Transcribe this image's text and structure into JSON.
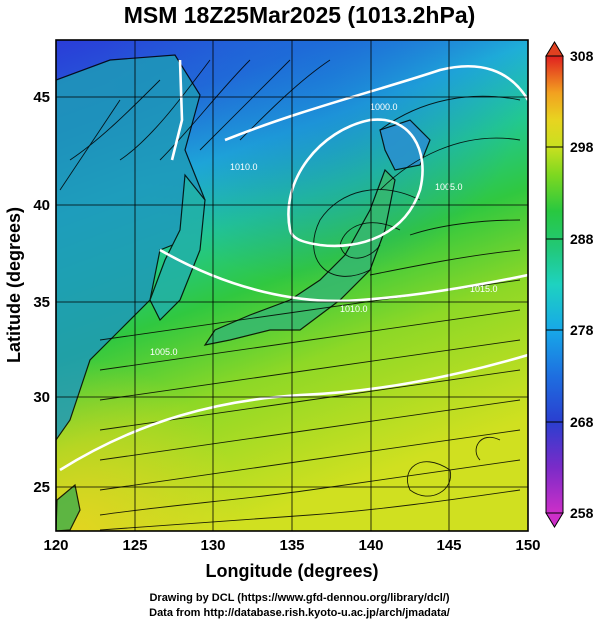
{
  "title": "MSM 18Z25Mar2025 (1013.2hPa)",
  "xlabel": "Longitude (degrees)",
  "ylabel": "Latitude  (degrees)",
  "x_ticks": [
    "120",
    "125",
    "130",
    "135",
    "140",
    "145",
    "150"
  ],
  "y_ticks": [
    "25",
    "30",
    "35",
    "40",
    "45"
  ],
  "colorbar_ticks": [
    "258",
    "268",
    "278",
    "288",
    "298",
    "308"
  ],
  "credits": {
    "line1": "Drawing by DCL (https://www.gfd-dennou.org/library/dcl/)",
    "line2": "Data from http://database.rish.kyoto-u.ac.jp/arch/jmadata/"
  },
  "isobar_labels": [
    "1005.0",
    "1010.0",
    "1015.0",
    "1010.0",
    "1000.0",
    "1005.0"
  ],
  "chart_data": {
    "type": "heatmap",
    "title": "MSM 18Z25Mar2025 (1013.2hPa)",
    "xlabel": "Longitude (degrees)",
    "ylabel": "Latitude  (degrees)",
    "xlim": [
      120,
      150
    ],
    "ylim": [
      22.4,
      47.6
    ],
    "x_ticks": [
      120,
      125,
      130,
      135,
      140,
      145,
      150
    ],
    "y_ticks": [
      25,
      30,
      35,
      40,
      45
    ],
    "colorbar": {
      "min": 258,
      "max": 308,
      "ticks": [
        258,
        268,
        278,
        288,
        298,
        308
      ]
    },
    "grid": true,
    "legend": "colorbar right"
  },
  "colors": {
    "colorbar": [
      "#cc2fc8",
      "#7a2bc8",
      "#2a3fd0",
      "#1e6fe0",
      "#17a8e8",
      "#1ed2c0",
      "#22c878",
      "#28c840",
      "#7ed820",
      "#c8e020",
      "#e8d420",
      "#f2a020",
      "#ef6020",
      "#e02020"
    ],
    "grid": "#000000",
    "isobar": "#ffffff"
  }
}
